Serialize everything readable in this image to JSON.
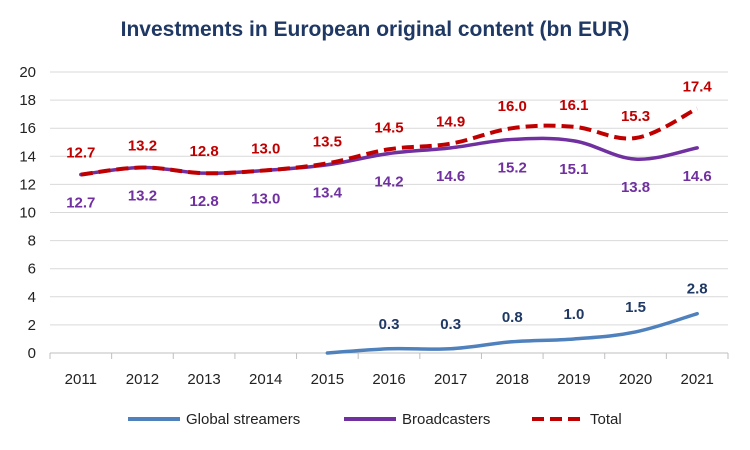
{
  "chart_data": {
    "type": "line",
    "title": "Investments in European original content (bn EUR)",
    "categories": [
      "2011",
      "2012",
      "2013",
      "2014",
      "2015",
      "2016",
      "2017",
      "2018",
      "2019",
      "2020",
      "2021"
    ],
    "ylim": [
      0,
      20
    ],
    "yticks": [
      "0",
      "2",
      "4",
      "6",
      "8",
      "10",
      "12",
      "14",
      "16",
      "18",
      "20"
    ],
    "grid": "horizontal",
    "legend_position": "bottom",
    "series": [
      {
        "name": "Global streamers",
        "color": "#4f81bd",
        "style": "solid",
        "label_color": "#1f3864",
        "values": [
          null,
          null,
          null,
          null,
          0.0,
          0.3,
          0.3,
          0.8,
          1.0,
          1.5,
          2.8
        ],
        "labels": [
          null,
          null,
          null,
          null,
          null,
          "0.3",
          "0.3",
          "0.8",
          "1.0",
          "1.5",
          "2.8"
        ]
      },
      {
        "name": "Broadcasters",
        "color": "#7030a0",
        "style": "solid",
        "label_color": "#7030a0",
        "values": [
          12.7,
          13.2,
          12.8,
          13.0,
          13.4,
          14.2,
          14.6,
          15.2,
          15.1,
          13.8,
          14.6
        ],
        "labels": [
          "12.7",
          "13.2",
          "12.8",
          "13.0",
          "13.4",
          "14.2",
          "14.6",
          "15.2",
          "15.1",
          "13.8",
          "14.6"
        ]
      },
      {
        "name": "Total",
        "color": "#c00000",
        "style": "dashed",
        "label_color": "#c00000",
        "values": [
          12.7,
          13.2,
          12.8,
          13.0,
          13.5,
          14.5,
          14.9,
          16.0,
          16.1,
          15.3,
          17.4
        ],
        "labels": [
          "12.7",
          "13.2",
          "12.8",
          "13.0",
          "13.5",
          "14.5",
          "14.9",
          "16.0",
          "16.1",
          "15.3",
          "17.4"
        ]
      }
    ]
  }
}
